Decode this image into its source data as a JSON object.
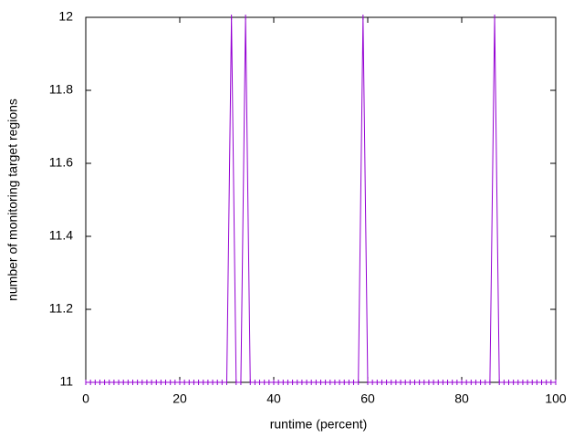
{
  "chart_data": {
    "type": "line",
    "xlabel": "runtime (percent)",
    "ylabel": "number of monitoring target regions",
    "x": [
      0,
      1,
      2,
      3,
      4,
      5,
      6,
      7,
      8,
      9,
      10,
      11,
      12,
      13,
      14,
      15,
      16,
      17,
      18,
      19,
      20,
      21,
      22,
      23,
      24,
      25,
      26,
      27,
      28,
      29,
      30,
      31,
      32,
      33,
      34,
      35,
      36,
      37,
      38,
      39,
      40,
      41,
      42,
      43,
      44,
      45,
      46,
      47,
      48,
      49,
      50,
      51,
      52,
      53,
      54,
      55,
      56,
      57,
      58,
      59,
      60,
      61,
      62,
      63,
      64,
      65,
      66,
      67,
      68,
      69,
      70,
      71,
      72,
      73,
      74,
      75,
      76,
      77,
      78,
      79,
      80,
      81,
      82,
      83,
      84,
      85,
      86,
      87,
      88,
      89,
      90,
      91,
      92,
      93,
      94,
      95,
      96,
      97,
      98,
      99,
      100
    ],
    "series": [
      {
        "color": "#9400d3",
        "values": [
          11,
          11,
          11,
          11,
          11,
          11,
          11,
          11,
          11,
          11,
          11,
          11,
          11,
          11,
          11,
          11,
          11,
          11,
          11,
          11,
          11,
          11,
          11,
          11,
          11,
          11,
          11,
          11,
          11,
          11,
          11,
          12,
          11,
          11,
          12,
          11,
          11,
          11,
          11,
          11,
          11,
          11,
          11,
          11,
          11,
          11,
          11,
          11,
          11,
          11,
          11,
          11,
          11,
          11,
          11,
          11,
          11,
          11,
          11,
          12,
          11,
          11,
          11,
          11,
          11,
          11,
          11,
          11,
          11,
          11,
          11,
          11,
          11,
          11,
          11,
          11,
          11,
          11,
          11,
          11,
          11,
          11,
          11,
          11,
          11,
          11,
          11,
          12,
          11,
          11,
          11,
          11,
          11,
          11,
          11,
          11,
          11,
          11,
          11,
          11,
          11
        ]
      }
    ],
    "xlim": [
      0,
      100
    ],
    "xticks": [
      0,
      20,
      40,
      60,
      80,
      100
    ],
    "ylim": [
      11,
      12
    ],
    "yticks": [
      11,
      11.2,
      11.4,
      11.6,
      11.8,
      12
    ]
  }
}
